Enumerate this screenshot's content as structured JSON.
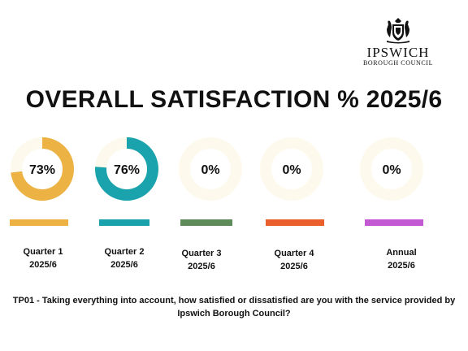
{
  "logo": {
    "name": "IPSWICH",
    "subtitle": "BOROUGH COUNCIL"
  },
  "title": "OVERALL SATISFACTION % 2025/6",
  "caption": "TP01 - Taking everything into account, how satisfied or dissatisfied are you with the service provided by Ipswich Borough Council?",
  "chart_data": {
    "type": "pie",
    "title": "OVERALL SATISFACTION % 2025/6",
    "unit": "%",
    "track_color": "#fdf9ec",
    "items": [
      {
        "label_line1": "Quarter 1",
        "label_line2": "2025/6",
        "value": 73,
        "display": "73%",
        "color": "#ecb344"
      },
      {
        "label_line1": "Quarter 2",
        "label_line2": "2025/6",
        "value": 76,
        "display": "76%",
        "color": "#1aa3ad"
      },
      {
        "label_line1": "Quarter 3",
        "label_line2": "2025/6",
        "value": 0,
        "display": "0%",
        "color": "#5f8a5a"
      },
      {
        "label_line1": "Quarter 4",
        "label_line2": "2025/6",
        "value": 0,
        "display": "0%",
        "color": "#ea5f2b"
      },
      {
        "label_line1": "Annual",
        "label_line2": "2025/6",
        "value": 0,
        "display": "0%",
        "color": "#c45ad3"
      }
    ]
  }
}
